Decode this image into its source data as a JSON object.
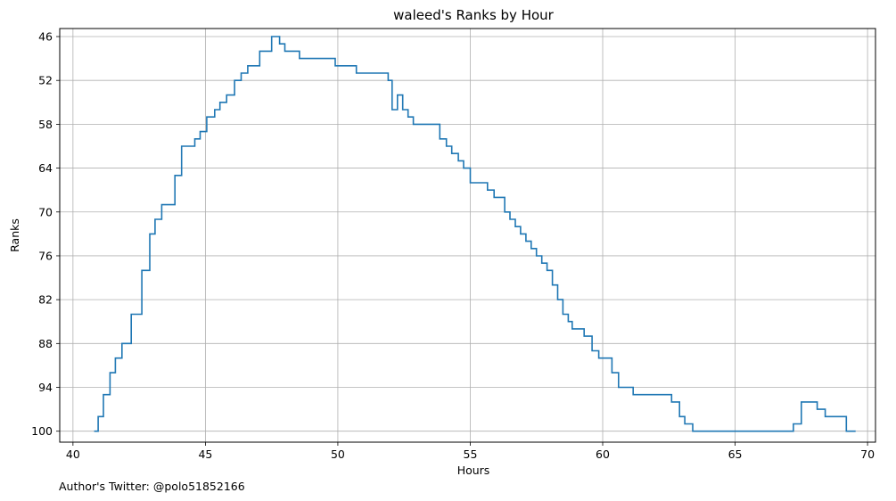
{
  "chart_data": {
    "type": "line",
    "style": "step-post",
    "title": "waleed's Ranks by Hour",
    "xlabel": "Hours",
    "ylabel": "Ranks",
    "xlim": [
      39.5,
      70.3
    ],
    "ylim": [
      101.5,
      44.9
    ],
    "y_inverted": true,
    "xticks": [
      40,
      45,
      50,
      55,
      60,
      65,
      70
    ],
    "yticks": [
      46,
      52,
      58,
      64,
      70,
      76,
      82,
      88,
      94,
      100
    ],
    "grid": true,
    "line_color": "#1f77b4",
    "series": [
      {
        "x": [
          40.8,
          40.95,
          41.15,
          41.4,
          41.6,
          41.85,
          42.2,
          42.6,
          42.9,
          43.1,
          43.35,
          43.85,
          44.1,
          44.6,
          44.8,
          45.05,
          45.35,
          45.55,
          45.8,
          46.1,
          46.35,
          46.6,
          47.05,
          47.5,
          47.8,
          48.0,
          48.55,
          49.0,
          49.5,
          49.9,
          50.3,
          50.7,
          51.1,
          51.5,
          51.9,
          52.05,
          52.25,
          52.45,
          52.65,
          52.85,
          53.05,
          53.5,
          53.85,
          54.1,
          54.3,
          54.55,
          54.75,
          55.0,
          55.4,
          55.65,
          55.9,
          56.3,
          56.5,
          56.7,
          56.9,
          57.1,
          57.3,
          57.5,
          57.7,
          57.9,
          58.1,
          58.3,
          58.5,
          58.7,
          58.85,
          59.05,
          59.3,
          59.6,
          59.85,
          60.1,
          60.35,
          60.6,
          60.9,
          61.15,
          61.5,
          61.75,
          62.2,
          62.6,
          62.9,
          63.1,
          63.4,
          63.7,
          64.2,
          65.0,
          66.0,
          67.2,
          67.5,
          67.85,
          68.1,
          68.4,
          68.8,
          69.2,
          69.55
        ],
        "values": [
          100,
          98,
          95,
          92,
          90,
          88,
          84,
          78,
          73,
          71,
          69,
          65,
          61,
          60,
          59,
          57,
          56,
          55,
          54,
          52,
          51,
          50,
          48,
          46,
          47,
          48,
          49,
          49,
          49,
          50,
          50,
          51,
          51,
          51,
          52,
          56,
          54,
          56,
          57,
          58,
          58,
          58,
          60,
          61,
          62,
          63,
          64,
          66,
          66,
          67,
          68,
          70,
          71,
          72,
          73,
          74,
          75,
          76,
          77,
          78,
          80,
          82,
          84,
          85,
          86,
          86,
          87,
          89,
          90,
          90,
          92,
          94,
          94,
          95,
          95,
          95,
          95,
          96,
          98,
          99,
          100,
          100,
          100,
          100,
          100,
          99,
          96,
          96,
          97,
          98,
          98,
          100,
          100
        ]
      }
    ]
  },
  "footer": {
    "note": "Author's Twitter: @polo51852166"
  }
}
